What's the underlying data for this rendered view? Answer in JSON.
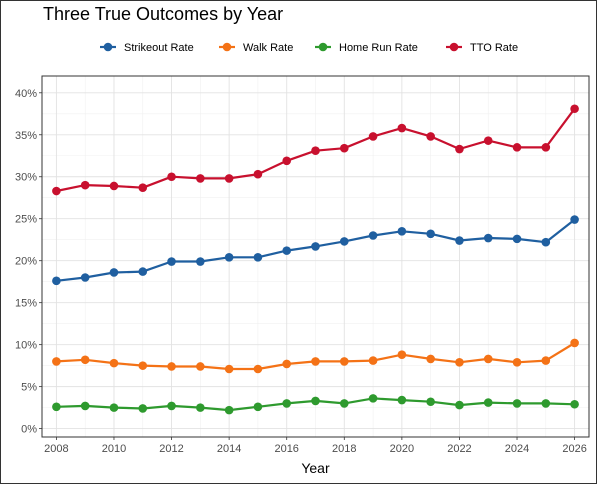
{
  "title": "Three True Outcomes by Year",
  "chart_data": {
    "type": "line",
    "title": "Three True Outcomes by Year",
    "xlabel": "Year",
    "ylabel": "",
    "xlim": [
      2007.5,
      2026.5
    ],
    "ylim": [
      -0.01,
      0.42
    ],
    "x_ticks": [
      2008,
      2010,
      2012,
      2014,
      2016,
      2018,
      2020,
      2022,
      2024,
      2026
    ],
    "y_ticks": [
      0,
      0.05,
      0.1,
      0.15,
      0.2,
      0.25,
      0.3,
      0.35,
      0.4
    ],
    "y_tick_labels": [
      "0%",
      "5%",
      "10%",
      "15%",
      "20%",
      "25%",
      "30%",
      "35%",
      "40%"
    ],
    "grid": true,
    "legend_position": "top",
    "x": [
      2008,
      2009,
      2010,
      2011,
      2012,
      2013,
      2014,
      2015,
      2016,
      2017,
      2018,
      2019,
      2020,
      2021,
      2022,
      2023,
      2024,
      2025,
      2026
    ],
    "series": [
      {
        "name": "Strikeout Rate",
        "color": "#1f5fa0",
        "values": [
          0.176,
          0.18,
          0.186,
          0.187,
          0.199,
          0.199,
          0.204,
          0.204,
          0.212,
          0.217,
          0.223,
          0.23,
          0.235,
          0.232,
          0.224,
          0.227,
          0.226,
          0.222,
          0.249
        ]
      },
      {
        "name": "Walk Rate",
        "color": "#f47216",
        "values": [
          0.08,
          0.082,
          0.078,
          0.075,
          0.074,
          0.074,
          0.071,
          0.071,
          0.077,
          0.08,
          0.08,
          0.081,
          0.088,
          0.083,
          0.079,
          0.083,
          0.079,
          0.081,
          0.102
        ]
      },
      {
        "name": "Home Run Rate",
        "color": "#2e9a2e",
        "values": [
          0.026,
          0.027,
          0.025,
          0.024,
          0.027,
          0.025,
          0.022,
          0.026,
          0.03,
          0.033,
          0.03,
          0.036,
          0.034,
          0.032,
          0.028,
          0.031,
          0.03,
          0.03,
          0.029
        ]
      },
      {
        "name": "TTO Rate",
        "color": "#c8102e",
        "values": [
          0.283,
          0.29,
          0.289,
          0.287,
          0.3,
          0.298,
          0.298,
          0.303,
          0.319,
          0.331,
          0.334,
          0.348,
          0.358,
          0.348,
          0.333,
          0.343,
          0.335,
          0.335,
          0.381
        ]
      }
    ]
  }
}
